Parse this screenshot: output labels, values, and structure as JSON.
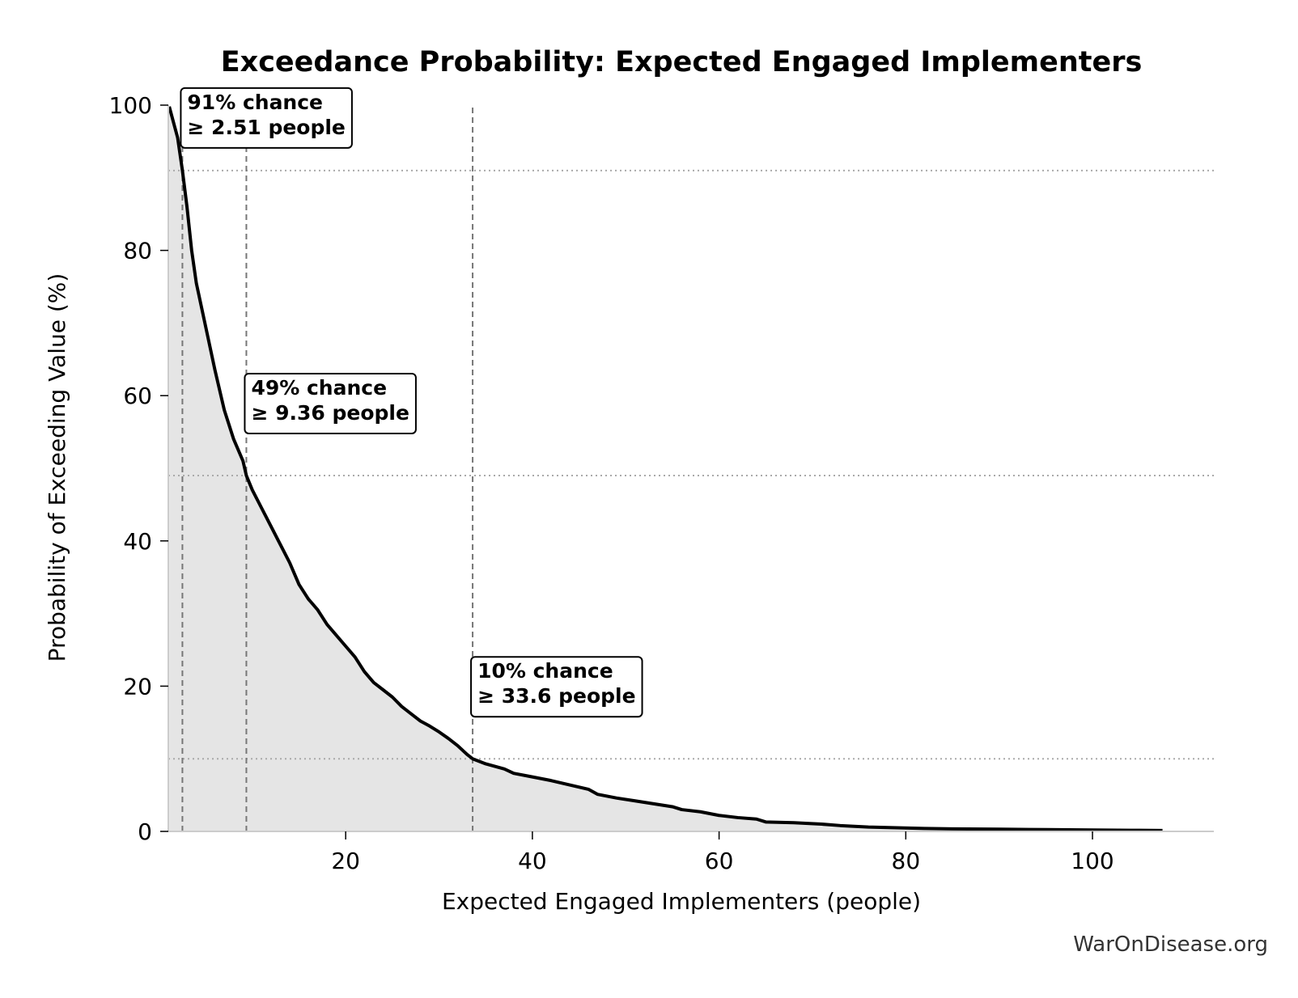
{
  "chart_data": {
    "type": "area",
    "title": "Exceedance Probability: Expected Engaged Implementers",
    "xlabel": "Expected Engaged Implementers (people)",
    "ylabel": "Probability of Exceeding Value (%)",
    "xlim": [
      1,
      113
    ],
    "ylim": [
      0,
      100
    ],
    "x_ticks": [
      20,
      40,
      60,
      80,
      100
    ],
    "y_ticks": [
      0,
      20,
      40,
      60,
      80,
      100
    ],
    "grid": false,
    "series": [
      {
        "line_color": "#000000",
        "fill_color": "#e5e5e5",
        "points": [
          [
            1.1,
            99.8
          ],
          [
            2.0,
            95.5
          ],
          [
            2.51,
            91.0
          ],
          [
            3.0,
            86.0
          ],
          [
            3.5,
            80.0
          ],
          [
            4.0,
            75.5
          ],
          [
            5.0,
            69.5
          ],
          [
            6.0,
            63.5
          ],
          [
            7.0,
            58.0
          ],
          [
            8.0,
            54.0
          ],
          [
            9.0,
            51.0
          ],
          [
            9.36,
            49.0
          ],
          [
            10.0,
            47.0
          ],
          [
            11.0,
            44.5
          ],
          [
            12.0,
            42.0
          ],
          [
            13.0,
            39.5
          ],
          [
            14.0,
            37.0
          ],
          [
            15.0,
            34.0
          ],
          [
            16.0,
            32.0
          ],
          [
            17.0,
            30.5
          ],
          [
            18.0,
            28.5
          ],
          [
            19.0,
            27.0
          ],
          [
            20.0,
            25.5
          ],
          [
            21.0,
            24.0
          ],
          [
            22.0,
            22.0
          ],
          [
            23.0,
            20.5
          ],
          [
            24.0,
            19.5
          ],
          [
            25.0,
            18.5
          ],
          [
            26.0,
            17.2
          ],
          [
            27.0,
            16.2
          ],
          [
            28.0,
            15.2
          ],
          [
            29.0,
            14.5
          ],
          [
            30.0,
            13.7
          ],
          [
            31.0,
            12.8
          ],
          [
            32.0,
            11.8
          ],
          [
            33.0,
            10.6
          ],
          [
            33.6,
            10.0
          ],
          [
            35.0,
            9.3
          ],
          [
            37.0,
            8.6
          ],
          [
            38.0,
            8.0
          ],
          [
            40.0,
            7.5
          ],
          [
            42.0,
            7.0
          ],
          [
            44.0,
            6.4
          ],
          [
            46.0,
            5.8
          ],
          [
            47.0,
            5.1
          ],
          [
            49.0,
            4.6
          ],
          [
            51.0,
            4.2
          ],
          [
            53.0,
            3.8
          ],
          [
            55.0,
            3.4
          ],
          [
            56.0,
            3.0
          ],
          [
            58.0,
            2.7
          ],
          [
            60.0,
            2.2
          ],
          [
            62.0,
            1.9
          ],
          [
            64.0,
            1.7
          ],
          [
            65.0,
            1.3
          ],
          [
            68.0,
            1.2
          ],
          [
            71.0,
            1.0
          ],
          [
            73.0,
            0.8
          ],
          [
            76.0,
            0.6
          ],
          [
            79.0,
            0.5
          ],
          [
            82.0,
            0.4
          ],
          [
            85.0,
            0.35
          ],
          [
            90.0,
            0.3
          ],
          [
            95.0,
            0.25
          ],
          [
            100.0,
            0.2
          ],
          [
            105.0,
            0.15
          ],
          [
            107.5,
            0.12
          ]
        ]
      }
    ],
    "annotations": [
      {
        "line1": "91% chance",
        "line2": "≥ 2.51 people",
        "x": 2.51,
        "y": 91
      },
      {
        "line1": "49% chance",
        "line2": "≥ 9.36 people",
        "x": 9.36,
        "y": 49
      },
      {
        "line1": "10% chance",
        "line2": "≥ 33.6 people",
        "x": 33.6,
        "y": 10
      }
    ]
  },
  "watermark": "WarOnDisease.org"
}
